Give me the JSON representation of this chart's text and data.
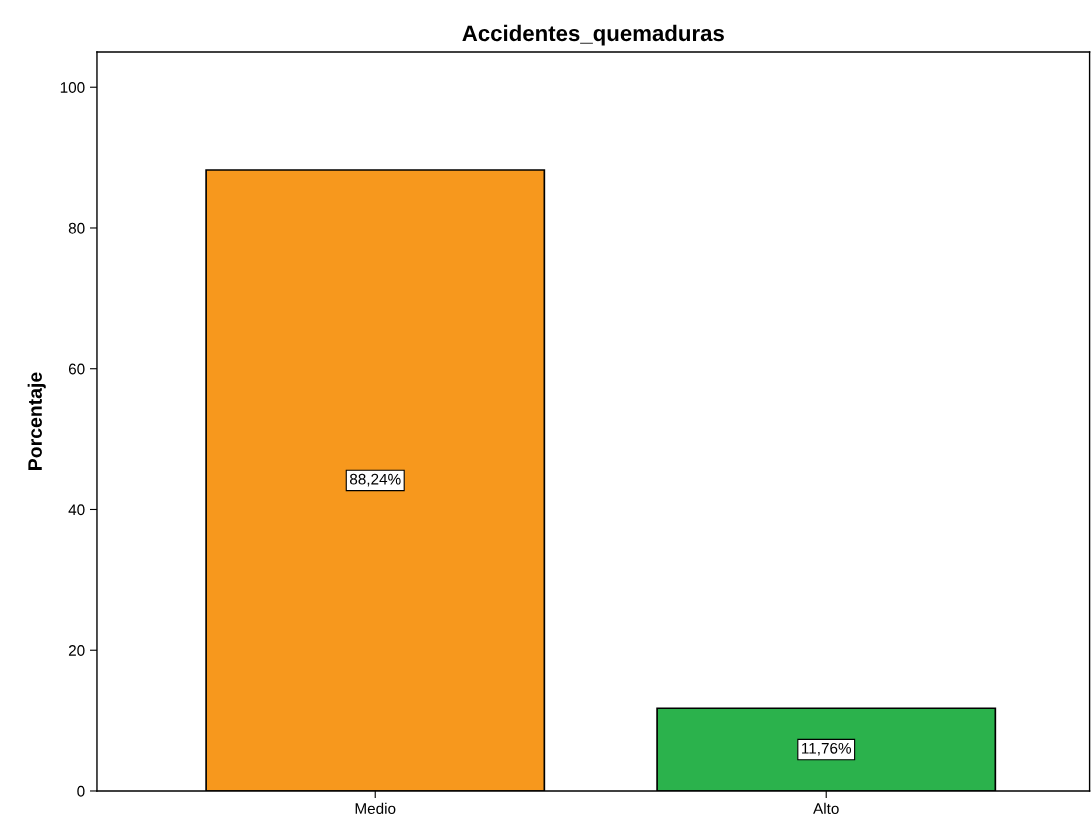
{
  "chart_data": {
    "type": "bar",
    "title": "Accidentes_quemaduras",
    "ylabel": "Porcentaje",
    "categories": [
      "Medio",
      "Alto"
    ],
    "values": [
      88.24,
      11.76
    ],
    "colors": [
      "#f7981d",
      "#2bb24c"
    ],
    "value_labels": [
      "88,24%",
      "11,76%"
    ],
    "ylim": [
      0,
      105
    ],
    "yticks": [
      0,
      20,
      40,
      60,
      80,
      100
    ],
    "grid": false,
    "legend": false
  }
}
